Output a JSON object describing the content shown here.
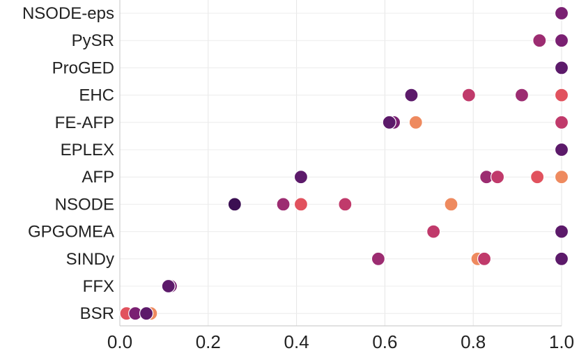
{
  "chart_data": {
    "type": "scatter",
    "title": "",
    "xlabel": "",
    "ylabel": "",
    "xlim": [
      0.0,
      1.0
    ],
    "x_ticks": [
      "0.0",
      "0.2",
      "0.4",
      "0.6",
      "0.8",
      "1.0"
    ],
    "x_tick_values": [
      0.0,
      0.2,
      0.4,
      0.6,
      0.8,
      1.0
    ],
    "grid": true,
    "categories": [
      "NSODE-eps",
      "PySR",
      "ProGED",
      "EHC",
      "FE-AFP",
      "EPLEX",
      "AFP",
      "NSODE",
      "GPGOMEA",
      "SINDy",
      "FFX",
      "BSR"
    ],
    "palette": [
      "#3b0f52",
      "#5c1a6a",
      "#7a2072",
      "#9c2c71",
      "#c03a6b",
      "#e1525e",
      "#ee8a5f"
    ],
    "points": [
      {
        "category": "NSODE-eps",
        "x": 1.0,
        "c": 2
      },
      {
        "category": "PySR",
        "x": 0.95,
        "c": 3
      },
      {
        "category": "PySR",
        "x": 1.0,
        "c": 2
      },
      {
        "category": "ProGED",
        "x": 1.0,
        "c": 1
      },
      {
        "category": "EHC",
        "x": 0.66,
        "c": 1
      },
      {
        "category": "EHC",
        "x": 0.79,
        "c": 4
      },
      {
        "category": "EHC",
        "x": 0.91,
        "c": 3
      },
      {
        "category": "EHC",
        "x": 1.0,
        "c": 5
      },
      {
        "category": "FE-AFP",
        "x": 0.62,
        "c": 2
      },
      {
        "category": "FE-AFP",
        "x": 0.61,
        "c": 1
      },
      {
        "category": "FE-AFP",
        "x": 0.67,
        "c": 6
      },
      {
        "category": "FE-AFP",
        "x": 1.0,
        "c": 4
      },
      {
        "category": "EPLEX",
        "x": 1.0,
        "c": 1
      },
      {
        "category": "AFP",
        "x": 0.41,
        "c": 1
      },
      {
        "category": "AFP",
        "x": 0.83,
        "c": 3
      },
      {
        "category": "AFP",
        "x": 0.855,
        "c": 4
      },
      {
        "category": "AFP",
        "x": 0.945,
        "c": 5
      },
      {
        "category": "AFP",
        "x": 1.0,
        "c": 6
      },
      {
        "category": "NSODE",
        "x": 0.26,
        "c": 0
      },
      {
        "category": "NSODE",
        "x": 0.37,
        "c": 3
      },
      {
        "category": "NSODE",
        "x": 0.41,
        "c": 5
      },
      {
        "category": "NSODE",
        "x": 0.51,
        "c": 4
      },
      {
        "category": "NSODE",
        "x": 0.75,
        "c": 6
      },
      {
        "category": "GPGOMEA",
        "x": 0.71,
        "c": 4
      },
      {
        "category": "GPGOMEA",
        "x": 1.0,
        "c": 1
      },
      {
        "category": "SINDy",
        "x": 0.585,
        "c": 3
      },
      {
        "category": "SINDy",
        "x": 0.81,
        "c": 6
      },
      {
        "category": "SINDy",
        "x": 0.825,
        "c": 4
      },
      {
        "category": "SINDy",
        "x": 1.0,
        "c": 1
      },
      {
        "category": "FFX",
        "x": 0.115,
        "c": 2
      },
      {
        "category": "FFX",
        "x": 0.11,
        "c": 1
      },
      {
        "category": "BSR",
        "x": 0.015,
        "c": 5
      },
      {
        "category": "BSR",
        "x": 0.07,
        "c": 6
      },
      {
        "category": "BSR",
        "x": 0.035,
        "c": 2
      },
      {
        "category": "BSR",
        "x": 0.06,
        "c": 1
      }
    ]
  }
}
